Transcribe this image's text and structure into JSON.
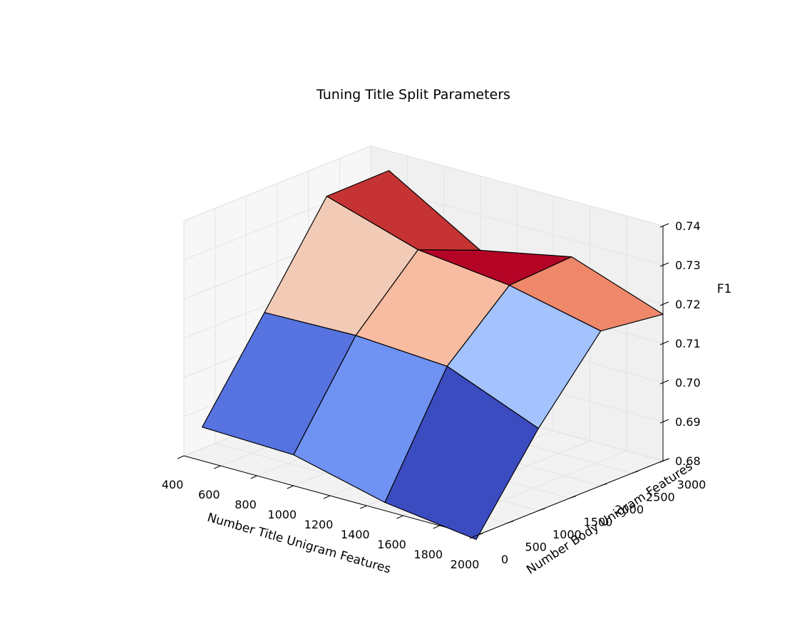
{
  "chart_data": {
    "type": "surface",
    "title": "Tuning Title Split Parameters",
    "xlabel": "Number Title Unigram Features",
    "ylabel": "Number Body Unigram Features",
    "zlabel": "F1",
    "x": [
      500,
      1000,
      1500,
      2000
    ],
    "y": [
      0,
      1000,
      2000,
      3000
    ],
    "z": [
      [
        0.6886,
        0.7115,
        0.7348,
        0.735
      ],
      [
        0.6879,
        0.712,
        0.7275,
        0.721
      ],
      [
        0.6821,
        0.7105,
        0.7248,
        0.7257
      ],
      [
        0.679,
        0.701,
        0.7195,
        0.7174
      ]
    ],
    "face_colors": [
      [
        "#5673e0",
        "#f2cbb7",
        "#c53334"
      ],
      [
        "#6f92f3",
        "#f7bca1",
        "#b40426"
      ],
      [
        "#3b4cc0",
        "#a3c2fe",
        "#ef886b"
      ]
    ],
    "xlim": [
      400,
      2000
    ],
    "ylim": [
      0,
      3000
    ],
    "zlim": [
      0.68,
      0.74
    ],
    "xticks": [
      "400",
      "600",
      "800",
      "1000",
      "1200",
      "1400",
      "1600",
      "1800",
      "2000"
    ],
    "yticks": [
      "0",
      "500",
      "1000",
      "1500",
      "2000",
      "2500",
      "3000"
    ],
    "zticks": [
      "0.68",
      "0.69",
      "0.70",
      "0.71",
      "0.72",
      "0.73",
      "0.74"
    ],
    "grid": true
  }
}
